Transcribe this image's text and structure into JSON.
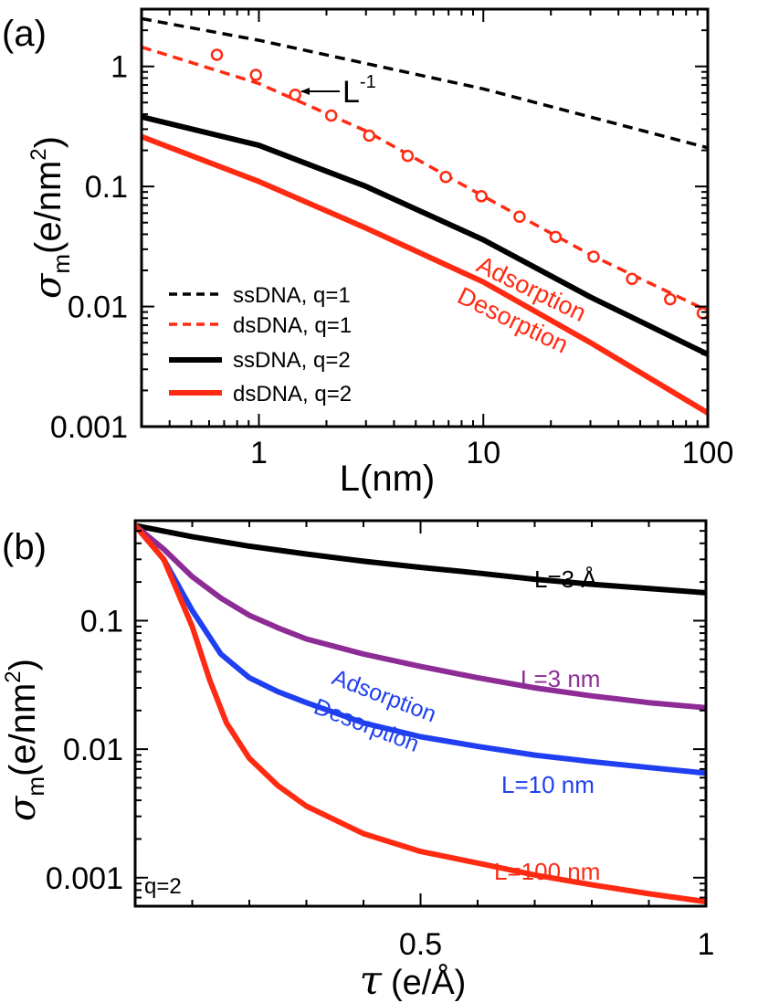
{
  "chart_data": [
    {
      "type": "line",
      "panel_label": "(a)",
      "x_scale": "log",
      "y_scale": "log",
      "xlim": [
        0.3,
        100
      ],
      "ylim": [
        0.001,
        3
      ],
      "xlabel_prefix": "L",
      "xlabel_units": "(nm)",
      "ylabel_sym": "σ",
      "ylabel_sub": "m",
      "ylabel_units": "(e/nm",
      "ylabel_sup": "2",
      "ylabel_close": ")",
      "x_ticks": [
        {
          "v": 1,
          "label": "1"
        },
        {
          "v": 10,
          "label": "10"
        },
        {
          "v": 100,
          "label": "100"
        }
      ],
      "y_ticks": [
        {
          "v": 0.001,
          "label": "0.001"
        },
        {
          "v": 0.01,
          "label": "0.01"
        },
        {
          "v": 0.1,
          "label": "0.1"
        },
        {
          "v": 1,
          "label": "1"
        }
      ],
      "series": [
        {
          "name": "ssDNA, q=1",
          "color": "#000000",
          "style": "dashed",
          "x": [
            0.3,
            1,
            10,
            100
          ],
          "y": [
            2.5,
            1.65,
            0.65,
            0.21
          ]
        },
        {
          "name": "dsDNA, q=1",
          "color": "#ff2a12",
          "style": "dashed",
          "x": [
            0.3,
            1,
            3,
            10,
            30,
            100
          ],
          "y": [
            1.45,
            0.72,
            0.29,
            0.083,
            0.027,
            0.0092
          ]
        },
        {
          "name": "ssDNA, q=2",
          "color": "#000000",
          "style": "solid",
          "x": [
            0.3,
            1,
            3,
            10,
            30,
            100
          ],
          "y": [
            0.38,
            0.22,
            0.1,
            0.036,
            0.012,
            0.004
          ]
        },
        {
          "name": "dsDNA, q=2",
          "color": "#ff2a12",
          "style": "solid",
          "x": [
            0.3,
            1,
            3,
            10,
            30,
            100
          ],
          "y": [
            0.26,
            0.11,
            0.045,
            0.016,
            0.005,
            0.0013
          ]
        }
      ],
      "markers": {
        "color": "#ff2a12",
        "x": [
          0.65,
          0.97,
          1.45,
          2.1,
          3.1,
          4.6,
          6.8,
          9.8,
          14.5,
          21,
          31,
          46,
          68,
          95
        ],
        "y": [
          1.25,
          0.85,
          0.58,
          0.39,
          0.265,
          0.18,
          0.12,
          0.083,
          0.056,
          0.038,
          0.026,
          0.017,
          0.0115,
          0.0088
        ]
      },
      "annotations": {
        "slope_base": "L",
        "slope_exp": "-1",
        "upper": "Adsorption",
        "lower": "Desorption"
      }
    },
    {
      "type": "line",
      "panel_label": "(b)",
      "x_scale": "linear",
      "y_scale": "log",
      "xlim": [
        0,
        1
      ],
      "ylim": [
        0.0006,
        0.6
      ],
      "xlabel_sym": "τ",
      "xlabel_units": "(e/Å)",
      "ylabel_sym": "σ",
      "ylabel_sub": "m",
      "ylabel_units": "(e/nm",
      "ylabel_sup": "2",
      "ylabel_close": ")",
      "x_ticks": [
        {
          "v": 0.5,
          "label": "0.5"
        },
        {
          "v": 1,
          "label": "1"
        }
      ],
      "y_ticks": [
        {
          "v": 0.001,
          "label": "0.001"
        },
        {
          "v": 0.01,
          "label": "0.01"
        },
        {
          "v": 0.1,
          "label": "0.1"
        }
      ],
      "q_label": "q=2",
      "series": [
        {
          "name": "L=3 Å",
          "color": "#000000",
          "x": [
            0,
            0.1,
            0.2,
            0.3,
            0.4,
            0.5,
            0.6,
            0.7,
            0.8,
            0.9,
            1.0
          ],
          "y": [
            0.55,
            0.45,
            0.38,
            0.33,
            0.29,
            0.26,
            0.235,
            0.21,
            0.192,
            0.178,
            0.165
          ]
        },
        {
          "name": "L=3 nm",
          "color": "#8e2c96",
          "x": [
            0,
            0.05,
            0.1,
            0.15,
            0.2,
            0.25,
            0.3,
            0.4,
            0.5,
            0.6,
            0.7,
            0.8,
            0.9,
            1.0
          ],
          "y": [
            0.55,
            0.36,
            0.22,
            0.15,
            0.11,
            0.088,
            0.072,
            0.055,
            0.044,
            0.036,
            0.03,
            0.026,
            0.023,
            0.021
          ]
        },
        {
          "name": "L=10 nm",
          "color": "#1f3ff0",
          "x": [
            0,
            0.05,
            0.1,
            0.15,
            0.2,
            0.25,
            0.3,
            0.4,
            0.5,
            0.6,
            0.7,
            0.8,
            0.9,
            1.0
          ],
          "y": [
            0.55,
            0.3,
            0.12,
            0.055,
            0.036,
            0.028,
            0.023,
            0.016,
            0.0125,
            0.0105,
            0.009,
            0.008,
            0.0072,
            0.0065
          ]
        },
        {
          "name": "L=100 nm",
          "color": "#ff2a12",
          "x": [
            0,
            0.05,
            0.1,
            0.13,
            0.16,
            0.2,
            0.25,
            0.3,
            0.4,
            0.5,
            0.6,
            0.7,
            0.8,
            0.9,
            1.0
          ],
          "y": [
            0.55,
            0.3,
            0.09,
            0.035,
            0.016,
            0.0085,
            0.0052,
            0.0036,
            0.0022,
            0.0016,
            0.0013,
            0.00105,
            0.00088,
            0.00075,
            0.00065
          ]
        }
      ],
      "annotations": {
        "upper": "Adsorption",
        "lower": "Desorption"
      }
    }
  ]
}
